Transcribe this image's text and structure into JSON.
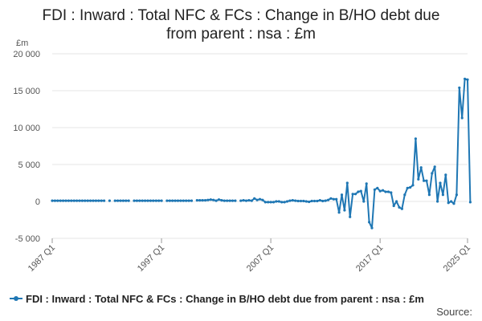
{
  "chart_data": {
    "type": "line",
    "title_line1": "FDI : Inward : Total NFC & FCs : Change in B/HO debt due",
    "title_line2": "from parent : nsa : £m",
    "unit_label": "£m",
    "y_ticks": [
      20000,
      15000,
      10000,
      5000,
      0,
      -5000
    ],
    "y_tick_labels": [
      "20 000",
      "15 000",
      "10 000",
      "5 000",
      "0",
      "-5 000"
    ],
    "ylim": [
      -5000,
      20000
    ],
    "x_ticks": [
      "1987 Q1",
      "1997 Q1",
      "2007 Q1",
      "2017 Q1",
      "2025 Q1"
    ],
    "x_start": "1987 Q1",
    "x_end": "2025 Q1",
    "grid": true,
    "legend_placement": "bottom-left",
    "series": [
      {
        "name": "FDI : Inward : Total NFC & FCs : Change in B/HO debt due from parent : nsa : £m",
        "color": "#1f77b4",
        "points": [
          {
            "x": "1987 Q1",
            "y": 100
          },
          {
            "x": "1987 Q2",
            "y": 100
          },
          {
            "x": "1987 Q3",
            "y": 100
          },
          {
            "x": "1987 Q4",
            "y": 100
          },
          {
            "x": "1988 Q1",
            "y": 100
          },
          {
            "x": "1988 Q2",
            "y": 100
          },
          {
            "x": "1988 Q3",
            "y": 100
          },
          {
            "x": "1988 Q4",
            "y": 100
          },
          {
            "x": "1989 Q1",
            "y": 100
          },
          {
            "x": "1989 Q2",
            "y": 100
          },
          {
            "x": "1989 Q3",
            "y": 100
          },
          {
            "x": "1989 Q4",
            "y": 100
          },
          {
            "x": "1990 Q1",
            "y": 100
          },
          {
            "x": "1990 Q2",
            "y": 100
          },
          {
            "x": "1990 Q3",
            "y": 100
          },
          {
            "x": "1990 Q4",
            "y": 100
          },
          {
            "x": "1991 Q1",
            "y": 100
          },
          {
            "x": "1991 Q2",
            "y": 100
          },
          {
            "x": "1991 Q3",
            "y": 100
          },
          {
            "x": "1991 Q4",
            "y": 100
          },
          {
            "x": "1992 Q1",
            "y": null
          },
          {
            "x": "1992 Q2",
            "y": 100
          },
          {
            "x": "1992 Q3",
            "y": null
          },
          {
            "x": "1992 Q4",
            "y": 100
          },
          {
            "x": "1993 Q1",
            "y": 100
          },
          {
            "x": "1993 Q2",
            "y": 100
          },
          {
            "x": "1993 Q3",
            "y": 100
          },
          {
            "x": "1993 Q4",
            "y": 100
          },
          {
            "x": "1994 Q1",
            "y": 100
          },
          {
            "x": "1994 Q2",
            "y": null
          },
          {
            "x": "1994 Q3",
            "y": 100
          },
          {
            "x": "1994 Q4",
            "y": 100
          },
          {
            "x": "1995 Q1",
            "y": 100
          },
          {
            "x": "1995 Q2",
            "y": 100
          },
          {
            "x": "1995 Q3",
            "y": 100
          },
          {
            "x": "1995 Q4",
            "y": 100
          },
          {
            "x": "1996 Q1",
            "y": 100
          },
          {
            "x": "1996 Q2",
            "y": 100
          },
          {
            "x": "1996 Q3",
            "y": 100
          },
          {
            "x": "1996 Q4",
            "y": 100
          },
          {
            "x": "1997 Q1",
            "y": 100
          },
          {
            "x": "1997 Q2",
            "y": null
          },
          {
            "x": "1997 Q3",
            "y": 100
          },
          {
            "x": "1997 Q4",
            "y": 100
          },
          {
            "x": "1998 Q1",
            "y": 100
          },
          {
            "x": "1998 Q2",
            "y": 100
          },
          {
            "x": "1998 Q3",
            "y": 100
          },
          {
            "x": "1998 Q4",
            "y": 100
          },
          {
            "x": "1999 Q1",
            "y": 100
          },
          {
            "x": "1999 Q2",
            "y": 100
          },
          {
            "x": "1999 Q3",
            "y": 100
          },
          {
            "x": "1999 Q4",
            "y": 100
          },
          {
            "x": "2000 Q1",
            "y": null
          },
          {
            "x": "2000 Q2",
            "y": 150
          },
          {
            "x": "2000 Q3",
            "y": 150
          },
          {
            "x": "2000 Q4",
            "y": 150
          },
          {
            "x": "2001 Q1",
            "y": 150
          },
          {
            "x": "2001 Q2",
            "y": 200
          },
          {
            "x": "2001 Q3",
            "y": 250
          },
          {
            "x": "2001 Q4",
            "y": 200
          },
          {
            "x": "2002 Q1",
            "y": 100
          },
          {
            "x": "2002 Q2",
            "y": 250
          },
          {
            "x": "2002 Q3",
            "y": 150
          },
          {
            "x": "2002 Q4",
            "y": 100
          },
          {
            "x": "2003 Q1",
            "y": 100
          },
          {
            "x": "2003 Q2",
            "y": 100
          },
          {
            "x": "2003 Q3",
            "y": 100
          },
          {
            "x": "2003 Q4",
            "y": 100
          },
          {
            "x": "2004 Q1",
            "y": null
          },
          {
            "x": "2004 Q2",
            "y": 100
          },
          {
            "x": "2004 Q3",
            "y": 150
          },
          {
            "x": "2004 Q4",
            "y": 100
          },
          {
            "x": "2005 Q1",
            "y": 150
          },
          {
            "x": "2005 Q2",
            "y": 100
          },
          {
            "x": "2005 Q3",
            "y": 400
          },
          {
            "x": "2005 Q4",
            "y": 200
          },
          {
            "x": "2006 Q1",
            "y": 300
          },
          {
            "x": "2006 Q2",
            "y": 200
          },
          {
            "x": "2006 Q3",
            "y": -100
          },
          {
            "x": "2006 Q4",
            "y": -100
          },
          {
            "x": "2007 Q1",
            "y": -100
          },
          {
            "x": "2007 Q2",
            "y": -100
          },
          {
            "x": "2007 Q3",
            "y": 0
          },
          {
            "x": "2007 Q4",
            "y": 0
          },
          {
            "x": "2008 Q1",
            "y": -100
          },
          {
            "x": "2008 Q2",
            "y": -100
          },
          {
            "x": "2008 Q3",
            "y": 0
          },
          {
            "x": "2008 Q4",
            "y": 100
          },
          {
            "x": "2009 Q1",
            "y": 150
          },
          {
            "x": "2009 Q2",
            "y": 100
          },
          {
            "x": "2009 Q3",
            "y": 50
          },
          {
            "x": "2009 Q4",
            "y": 50
          },
          {
            "x": "2010 Q1",
            "y": 50
          },
          {
            "x": "2010 Q2",
            "y": 0
          },
          {
            "x": "2010 Q3",
            "y": -50
          },
          {
            "x": "2010 Q4",
            "y": 50
          },
          {
            "x": "2011 Q1",
            "y": 50
          },
          {
            "x": "2011 Q2",
            "y": 50
          },
          {
            "x": "2011 Q3",
            "y": 150
          },
          {
            "x": "2011 Q4",
            "y": 50
          },
          {
            "x": "2012 Q1",
            "y": 100
          },
          {
            "x": "2012 Q2",
            "y": 200
          },
          {
            "x": "2012 Q3",
            "y": 400
          },
          {
            "x": "2012 Q4",
            "y": 300
          },
          {
            "x": "2013 Q1",
            "y": 300
          },
          {
            "x": "2013 Q2",
            "y": -1500
          },
          {
            "x": "2013 Q3",
            "y": 900
          },
          {
            "x": "2013 Q4",
            "y": -1200
          },
          {
            "x": "2014 Q1",
            "y": 2500
          },
          {
            "x": "2014 Q2",
            "y": -2100
          },
          {
            "x": "2014 Q3",
            "y": 1000
          },
          {
            "x": "2014 Q4",
            "y": 1000
          },
          {
            "x": "2015 Q1",
            "y": 1300
          },
          {
            "x": "2015 Q2",
            "y": 1400
          },
          {
            "x": "2015 Q3",
            "y": 0
          },
          {
            "x": "2015 Q4",
            "y": 2400
          },
          {
            "x": "2016 Q1",
            "y": -2800
          },
          {
            "x": "2016 Q2",
            "y": -3600
          },
          {
            "x": "2016 Q3",
            "y": 1600
          },
          {
            "x": "2016 Q4",
            "y": 1800
          },
          {
            "x": "2017 Q1",
            "y": 1400
          },
          {
            "x": "2017 Q2",
            "y": 1500
          },
          {
            "x": "2017 Q3",
            "y": 1300
          },
          {
            "x": "2017 Q4",
            "y": 1300
          },
          {
            "x": "2018 Q1",
            "y": 1200
          },
          {
            "x": "2018 Q2",
            "y": -600
          },
          {
            "x": "2018 Q3",
            "y": 0
          },
          {
            "x": "2018 Q4",
            "y": -800
          },
          {
            "x": "2019 Q1",
            "y": -1000
          },
          {
            "x": "2019 Q2",
            "y": 900
          },
          {
            "x": "2019 Q3",
            "y": 1800
          },
          {
            "x": "2019 Q4",
            "y": 1900
          },
          {
            "x": "2020 Q1",
            "y": 2200
          },
          {
            "x": "2020 Q2",
            "y": 8500
          },
          {
            "x": "2020 Q3",
            "y": 3000
          },
          {
            "x": "2020 Q4",
            "y": 4600
          },
          {
            "x": "2021 Q1",
            "y": 2800
          },
          {
            "x": "2021 Q2",
            "y": 2800
          },
          {
            "x": "2021 Q3",
            "y": 900
          },
          {
            "x": "2021 Q4",
            "y": 3800
          },
          {
            "x": "2022 Q1",
            "y": 4700
          },
          {
            "x": "2022 Q2",
            "y": 0
          },
          {
            "x": "2022 Q3",
            "y": 2500
          },
          {
            "x": "2022 Q4",
            "y": 900
          },
          {
            "x": "2023 Q1",
            "y": 3600
          },
          {
            "x": "2023 Q2",
            "y": -200
          },
          {
            "x": "2023 Q3",
            "y": 0
          },
          {
            "x": "2023 Q4",
            "y": -300
          },
          {
            "x": "2024 Q1",
            "y": 900
          },
          {
            "x": "2024 Q2",
            "y": 15400
          },
          {
            "x": "2024 Q3",
            "y": 11300
          },
          {
            "x": "2024 Q4",
            "y": 16600
          },
          {
            "x": "2025 Q1",
            "y": 16500
          },
          {
            "x": "2025 Q2",
            "y": -100
          }
        ]
      }
    ]
  },
  "legend": {
    "label": "FDI : Inward : Total NFC & FCs : Change in B/HO debt due from parent : nsa : £m"
  },
  "source_label": "Source:"
}
